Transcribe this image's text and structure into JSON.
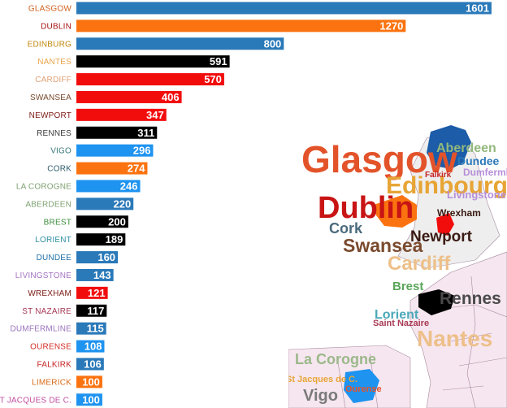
{
  "chart_data": {
    "type": "bar",
    "orientation": "horizontal",
    "categories": [
      "GLASGOW",
      "DUBLIN",
      "EDINBURG",
      "NANTES",
      "CARDIFF",
      "SWANSEA",
      "NEWPORT",
      "RENNES",
      "VIGO",
      "CORK",
      "LA COROGNE",
      "ABERDEEN",
      "BREST",
      "LORIENT",
      "DUNDEE",
      "LIVINGSTONE",
      "WREXHAM",
      "ST NAZAIRE",
      "DUMFERMLINE",
      "OURENSE",
      "FALKIRK",
      "LIMERICK",
      "ST JACQUES DE C."
    ],
    "values": [
      1601,
      1270,
      800,
      591,
      570,
      406,
      347,
      311,
      296,
      274,
      246,
      220,
      200,
      189,
      160,
      143,
      121,
      117,
      115,
      108,
      106,
      100,
      100
    ],
    "bar_colors": [
      "#2a79b9",
      "#fb7310",
      "#2a79b9",
      "#000000",
      "#f20d0d",
      "#f20d0d",
      "#f20d0d",
      "#000000",
      "#1e93f0",
      "#fb7310",
      "#1e93f0",
      "#2a79b9",
      "#000000",
      "#000000",
      "#2a79b9",
      "#2a79b9",
      "#f20d0d",
      "#000000",
      "#2a79b9",
      "#1e93f0",
      "#2a79b9",
      "#fb7310",
      "#1e93f0"
    ],
    "label_colors": [
      "#d2611f",
      "#a71414",
      "#c1870f",
      "#e9a64c",
      "#e0a075",
      "#7a4a2e",
      "#7d1a14",
      "#3b3b3b",
      "#3c7a7c",
      "#2f5d6b",
      "#7fa271",
      "#7fa271",
      "#3d8c3d",
      "#2f8fa0",
      "#1f6fa8",
      "#a574c4",
      "#7a1a12",
      "#a83a55",
      "#9a73bd",
      "#d42c24",
      "#c42424",
      "#d96a17",
      "#c14ba0"
    ],
    "xlim": [
      0,
      1620
    ],
    "grid": false,
    "legend": "none"
  },
  "map": {
    "labels": [
      {
        "text": "Glasgow",
        "color": "#e3532a"
      },
      {
        "text": "Aberdeen",
        "color": "#92b87c"
      },
      {
        "text": "Dundee",
        "color": "#2a79b9"
      },
      {
        "text": "Edinbourg",
        "color": "#e7a535"
      },
      {
        "text": "Falkirk",
        "color": "#c42424"
      },
      {
        "text": "Dumfermline",
        "color": "#b78ed9"
      },
      {
        "text": "Livingstone",
        "color": "#b78ed9"
      },
      {
        "text": "Dublin",
        "color": "#c81414"
      },
      {
        "text": "Wrexham",
        "color": "#3a1a12"
      },
      {
        "text": "Cork",
        "color": "#4a6b7c"
      },
      {
        "text": "Newport",
        "color": "#3a1a12"
      },
      {
        "text": "Swansea",
        "color": "#7a4a2e"
      },
      {
        "text": "Cardiff",
        "color": "#edc08a"
      },
      {
        "text": "Brest",
        "color": "#5aa65a"
      },
      {
        "text": "Rennes",
        "color": "#4a4a4a"
      },
      {
        "text": "Lorient",
        "color": "#4aa8b8"
      },
      {
        "text": "Saint Nazaire",
        "color": "#a83a55"
      },
      {
        "text": "Nantes",
        "color": "#edc08a"
      },
      {
        "text": "La Corogne",
        "color": "#9bb88a"
      },
      {
        "text": "St Jacques de C.",
        "color": "#e7a535"
      },
      {
        "text": "Ourense",
        "color": "#e3532a"
      },
      {
        "text": "Vigo",
        "color": "#7a7a7a"
      }
    ]
  }
}
